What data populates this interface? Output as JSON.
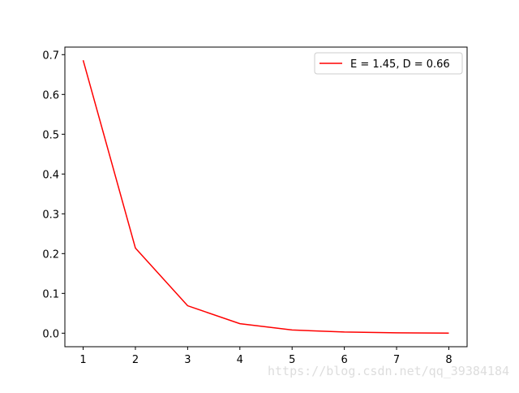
{
  "chart_data": {
    "type": "line",
    "x": [
      1,
      2,
      3,
      4,
      5,
      6,
      7,
      8
    ],
    "series": [
      {
        "name": "E = 1.45, D = 0.66",
        "color": "#ff0000",
        "values": [
          0.686,
          0.214,
          0.069,
          0.024,
          0.008,
          0.003,
          0.001,
          0.0003
        ]
      }
    ],
    "xlim": [
      0.65,
      8.35
    ],
    "xticks": [
      1,
      2,
      3,
      4,
      5,
      6,
      7,
      8
    ],
    "ylim": [
      -0.034,
      0.719
    ],
    "yticks": [
      {
        "value": 0,
        "label": "0.0"
      },
      0.1,
      0.2,
      0.3,
      0.4,
      0.5,
      0.6,
      0.7
    ],
    "legend": "upper right",
    "watermark": "https://blog.csdn.net/qq_39384184"
  }
}
